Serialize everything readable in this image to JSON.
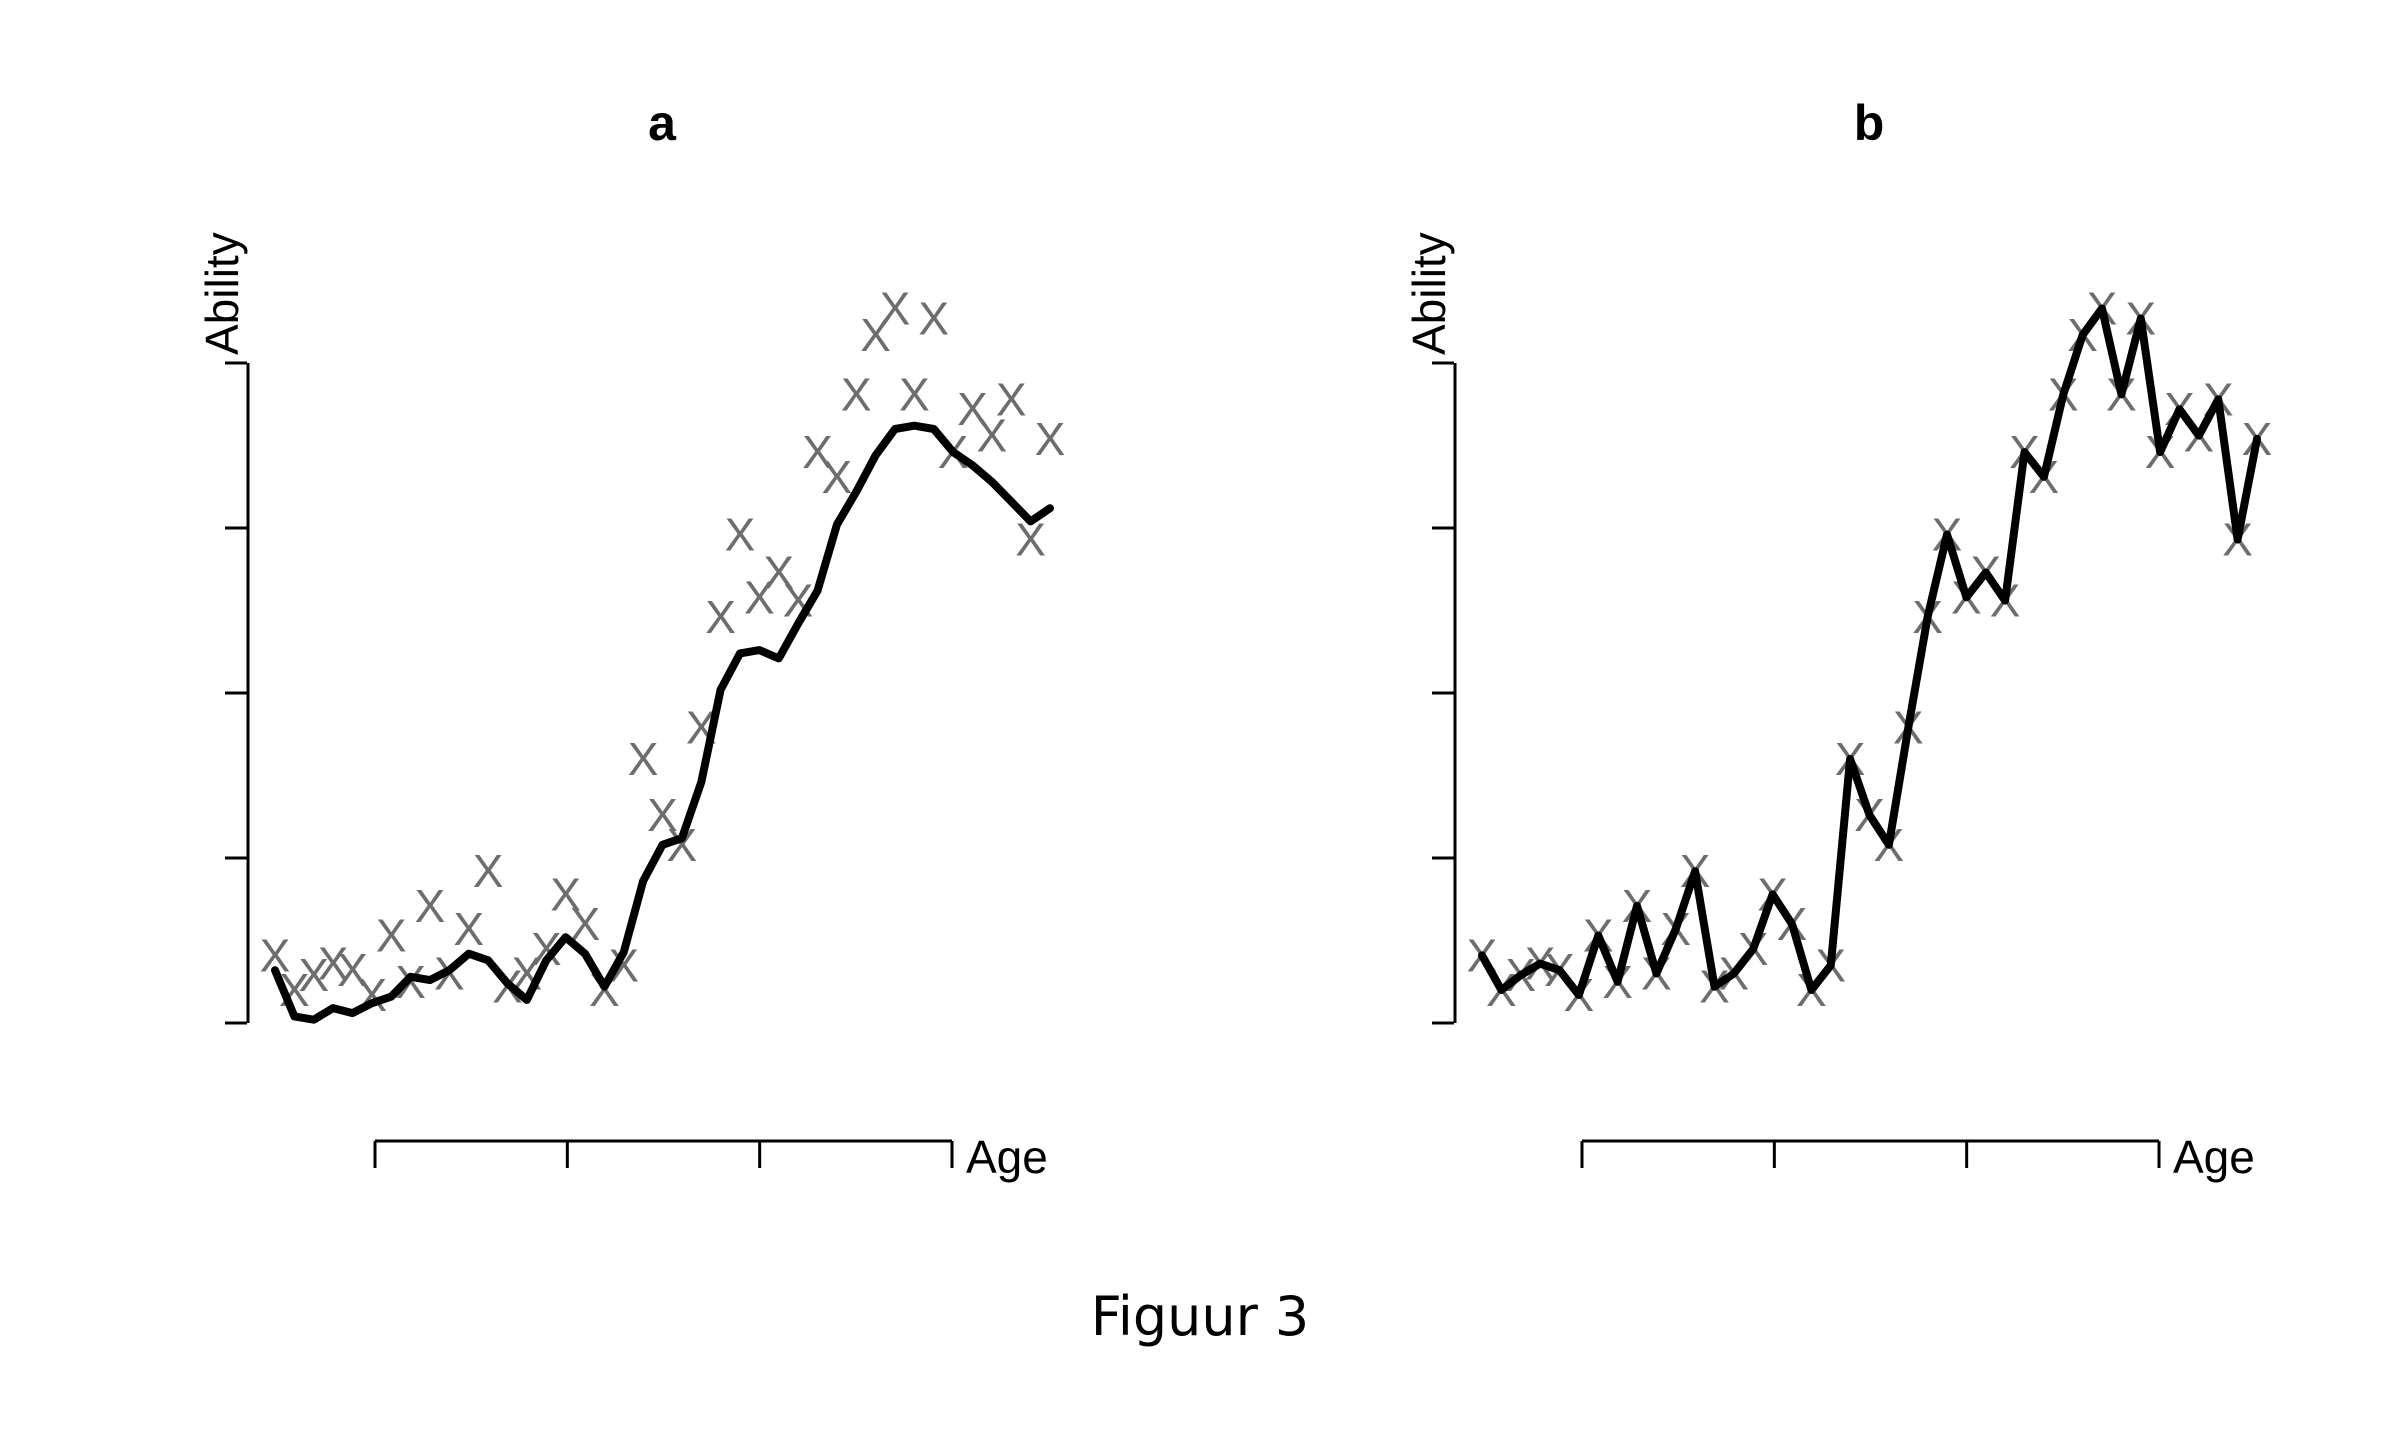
{
  "caption": "Figuur 3",
  "colors": {
    "observed_marker": "#6d6d6d",
    "line": "#000000"
  },
  "chart_data": [
    {
      "type": "line",
      "title": "a",
      "ylabel": "Ability",
      "xlabel": "Age",
      "marker_symbol": "X",
      "description_of_line": "smoothed",
      "x": [
        1,
        2,
        3,
        4,
        5,
        6,
        7,
        8,
        9,
        10,
        11,
        12,
        13,
        14,
        15,
        16,
        17,
        18,
        19,
        20,
        21,
        22,
        23,
        24,
        25,
        26,
        27,
        28,
        29,
        30,
        31,
        32,
        33,
        34,
        35,
        36,
        37,
        38,
        39,
        40,
        41
      ],
      "observed": [
        0.41,
        0.2,
        0.29,
        0.36,
        0.32,
        0.17,
        0.53,
        0.25,
        0.71,
        0.3,
        0.57,
        0.92,
        0.22,
        0.3,
        0.45,
        0.78,
        0.6,
        0.2,
        0.35,
        1.6,
        1.26,
        1.08,
        1.79,
        2.46,
        2.96,
        2.58,
        2.73,
        2.56,
        3.46,
        3.31,
        3.81,
        4.17,
        4.33,
        3.81,
        4.27,
        3.46,
        3.72,
        3.56,
        3.78,
        2.93,
        3.54
      ],
      "fitted": [
        0.32,
        0.04,
        0.02,
        0.09,
        0.06,
        0.12,
        0.16,
        0.28,
        0.26,
        0.32,
        0.42,
        0.38,
        0.24,
        0.14,
        0.38,
        0.52,
        0.42,
        0.22,
        0.43,
        0.86,
        1.08,
        1.12,
        1.46,
        2.02,
        2.24,
        2.26,
        2.21,
        2.42,
        2.62,
        3.02,
        3.22,
        3.44,
        3.6,
        3.62,
        3.6,
        3.46,
        3.38,
        3.28,
        3.16,
        3.04,
        3.12
      ],
      "xlim": [
        0,
        41
      ],
      "ylim": [
        0,
        4
      ],
      "xticks": 4,
      "yticks": 5,
      "tick_labels": "none"
    },
    {
      "type": "line",
      "title": "b",
      "ylabel": "Ability",
      "xlabel": "Age",
      "marker_symbol": "X",
      "description_of_line": "connects every observation",
      "x": [
        1,
        2,
        3,
        4,
        5,
        6,
        7,
        8,
        9,
        10,
        11,
        12,
        13,
        14,
        15,
        16,
        17,
        18,
        19,
        20,
        21,
        22,
        23,
        24,
        25,
        26,
        27,
        28,
        29,
        30,
        31,
        32,
        33,
        34,
        35,
        36,
        37,
        38,
        39,
        40,
        41
      ],
      "observed": [
        0.41,
        0.2,
        0.29,
        0.36,
        0.32,
        0.17,
        0.53,
        0.25,
        0.71,
        0.3,
        0.57,
        0.92,
        0.22,
        0.3,
        0.45,
        0.78,
        0.6,
        0.2,
        0.35,
        1.6,
        1.26,
        1.08,
        1.79,
        2.46,
        2.96,
        2.58,
        2.73,
        2.56,
        3.46,
        3.31,
        3.81,
        4.17,
        4.33,
        3.81,
        4.27,
        3.46,
        3.72,
        3.56,
        3.78,
        2.93,
        3.54
      ],
      "fitted": [
        0.41,
        0.2,
        0.29,
        0.36,
        0.32,
        0.17,
        0.53,
        0.25,
        0.71,
        0.3,
        0.57,
        0.92,
        0.22,
        0.3,
        0.45,
        0.78,
        0.6,
        0.2,
        0.35,
        1.6,
        1.26,
        1.08,
        1.79,
        2.46,
        2.96,
        2.58,
        2.73,
        2.56,
        3.46,
        3.31,
        3.81,
        4.17,
        4.33,
        3.81,
        4.27,
        3.46,
        3.72,
        3.56,
        3.78,
        2.93,
        3.54
      ],
      "xlim": [
        0,
        41
      ],
      "ylim": [
        0,
        4
      ],
      "xticks": 4,
      "yticks": 5,
      "tick_labels": "none"
    }
  ]
}
